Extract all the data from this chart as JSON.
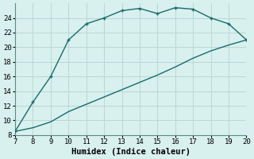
{
  "title": "",
  "xlabel": "Humidex (Indice chaleur)",
  "bg_color": "#d8f0ee",
  "grid_color": "#b8d8d4",
  "line_color": "#1a6b6b",
  "xlim": [
    7,
    20
  ],
  "ylim": [
    8,
    26
  ],
  "xticks": [
    7,
    8,
    9,
    10,
    11,
    12,
    13,
    14,
    15,
    16,
    17,
    18,
    19,
    20
  ],
  "yticks": [
    8,
    10,
    12,
    14,
    16,
    18,
    20,
    22,
    24
  ],
  "upper_x": [
    7,
    8,
    9,
    10,
    11,
    12,
    13,
    14,
    15,
    16,
    17,
    18,
    19,
    20
  ],
  "upper_y": [
    8.5,
    12.5,
    16.0,
    21.0,
    23.2,
    24.0,
    25.0,
    25.3,
    24.6,
    25.4,
    25.2,
    24.0,
    23.2,
    21.0
  ],
  "lower_x": [
    7,
    8,
    9,
    10,
    11,
    12,
    13,
    14,
    15,
    16,
    17,
    18,
    19,
    20
  ],
  "lower_y": [
    8.5,
    9.0,
    9.8,
    11.2,
    12.2,
    13.2,
    14.2,
    15.2,
    16.2,
    17.3,
    18.5,
    19.5,
    20.3,
    21.0
  ],
  "font_family": "monospace",
  "tick_fontsize": 6.5,
  "label_fontsize": 7.5
}
